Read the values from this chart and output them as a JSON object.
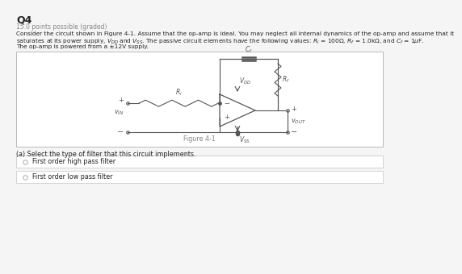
{
  "title": "Q4",
  "subtitle": "15.0 points possible (graded)",
  "body1": "Consider the circuit shown in Figure 4-1. Assume that the op-amp is ideal. You may neglect all internal dynamics of the op-amp and assume that it",
  "body2": "saturates at its power supply, VₚD and VₚS. The passive circuit elements have the following values: Rᵢ = 100Ω, Rⁱ = 1.0kΩ, and Cⁱ = 1μF.",
  "body2_render": "saturates at its power supply, VDD and VSS. The passive circuit elements have the following values: Ri = 100Ω, Rf = 1.0kΩ, and Cf = 1μF.",
  "body3": "The op-amp is powered from a ±12V supply.",
  "figure_caption": "Figure 4-1",
  "question_a": "(a) Select the type of filter that this circuit implements.",
  "option_1": "First order high pass filter",
  "option_2": "First order low pass filter",
  "bg_color": "#f5f5f5",
  "box_bg": "#ffffff",
  "box_border": "#cccccc",
  "text_color": "#222222",
  "gray_text": "#888888",
  "option_box_border": "#cccccc",
  "circuit_color": "#555555"
}
